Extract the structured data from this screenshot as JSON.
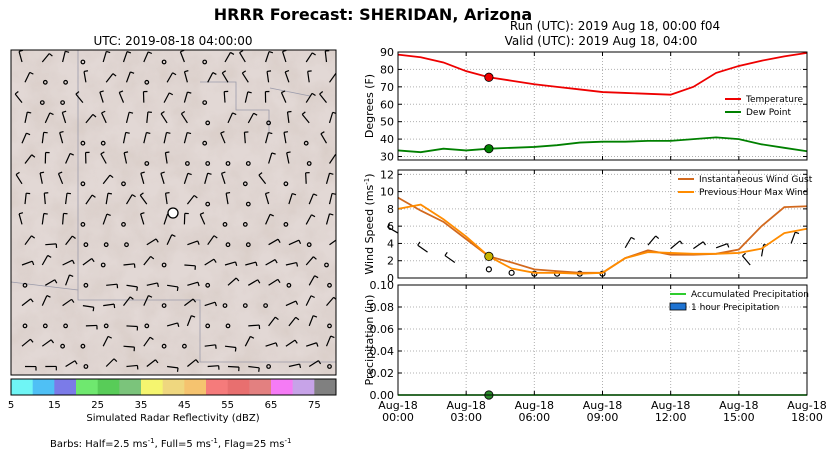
{
  "title": "HRRR Forecast: SHERIDAN, Arizona",
  "map": {
    "utc_label": "UTC: 2019-08-18 04:00:00",
    "colorbar": {
      "label": "Simulated Radar Reflectivity (dBZ)",
      "ticks": [
        "5",
        "15",
        "25",
        "35",
        "45",
        "55",
        "65",
        "75"
      ],
      "colors": [
        "#6ff5f5",
        "#4fc0f5",
        "#7b7be8",
        "#6fe86f",
        "#58cc58",
        "#7bc47b",
        "#f5f56f",
        "#efd77f",
        "#f5c36f",
        "#f57b7b",
        "#e86f6f",
        "#e38080",
        "#f57bf5",
        "#c7a3e8",
        "#808080"
      ]
    },
    "barbs_note": "Barbs: Half=2.5 ms",
    "barbs_note2": ", Full=5 ms",
    "barbs_note3": ", Flag=25 ms",
    "barb_sup": "-1"
  },
  "run_label": "Run (UTC): 2019 Aug 18, 00:00 f04",
  "valid_label": "Valid (UTC): 2019 Aug 18, 04:00",
  "x_ticks": [
    {
      "line1": "Aug-18",
      "line2": "00:00"
    },
    {
      "line1": "Aug-18",
      "line2": "03:00"
    },
    {
      "line1": "Aug-18",
      "line2": "06:00"
    },
    {
      "line1": "Aug-18",
      "line2": "09:00"
    },
    {
      "line1": "Aug-18",
      "line2": "12:00"
    },
    {
      "line1": "Aug-18",
      "line2": "15:00"
    },
    {
      "line1": "Aug-18",
      "line2": "18:00"
    }
  ],
  "chart_data": [
    {
      "type": "line",
      "ylabel": "Degrees (F)",
      "ylim": [
        28,
        90
      ],
      "yticks": [
        30,
        40,
        50,
        60,
        70,
        80,
        90
      ],
      "x_hours": [
        0,
        1,
        2,
        3,
        4,
        5,
        6,
        7,
        8,
        9,
        10,
        11,
        12,
        13,
        14,
        15,
        16,
        17,
        18
      ],
      "series": [
        {
          "name": "Temperature",
          "color": "#ee0000",
          "values": [
            88.5,
            87,
            84,
            79,
            75.5,
            73.5,
            71.5,
            70,
            68.5,
            67,
            66.5,
            66,
            65.5,
            70,
            78,
            82,
            85,
            87.5,
            89.5
          ]
        },
        {
          "name": "Dew Point",
          "color": "#008000",
          "values": [
            33.5,
            32.5,
            34.5,
            33.5,
            34.5,
            35,
            35.5,
            36.5,
            38,
            38.5,
            38.5,
            39,
            39,
            40,
            41,
            40,
            37,
            35,
            33
          ]
        }
      ],
      "marker_hour": 4,
      "legend": "right"
    },
    {
      "type": "line",
      "ylabel": "Wind Speed (ms",
      "ylabel_sup": "-1",
      "ylabel_close": ")",
      "ylim": [
        0,
        12.5
      ],
      "yticks": [
        0,
        2,
        4,
        6,
        8,
        10,
        12
      ],
      "x_hours": [
        0,
        1,
        2,
        3,
        4,
        5,
        6,
        7,
        8,
        9,
        10,
        11,
        12,
        13,
        14,
        15,
        16,
        17,
        18
      ],
      "series": [
        {
          "name": "Instantaneous Wind Gust",
          "color": "#d2691e",
          "values": [
            9.3,
            7.8,
            6.5,
            4.5,
            2.5,
            1.8,
            1.0,
            0.8,
            0.6,
            0.6,
            2.3,
            3.2,
            2.7,
            2.7,
            2.8,
            3.3,
            6.0,
            8.2,
            8.3
          ]
        },
        {
          "name": "Previous Hour Max Wind",
          "color": "#ff8c00",
          "values": [
            8.0,
            8.5,
            6.8,
            4.8,
            2.5,
            1.1,
            0.6,
            0.6,
            0.5,
            0.6,
            2.3,
            3.0,
            2.9,
            2.8,
            2.8,
            2.9,
            3.4,
            5.2,
            5.7
          ]
        }
      ],
      "marker_hour": 4,
      "legend": "top-right"
    },
    {
      "type": "line",
      "ylabel": "Precipitation (in)",
      "ylim": [
        0,
        0.1
      ],
      "yticks": [
        "0.00",
        "0.02",
        "0.04",
        "0.06",
        "0.08",
        "0.10"
      ],
      "x_hours": [
        0,
        18
      ],
      "series": [
        {
          "name": "Accumulated Precipitation",
          "color": "#2ecc2e",
          "values": [
            0,
            0
          ]
        },
        {
          "name": "1 hour Precipitation",
          "color": "#1e73d2",
          "values": []
        }
      ],
      "marker_hour": 4,
      "legend": "top-right"
    }
  ]
}
